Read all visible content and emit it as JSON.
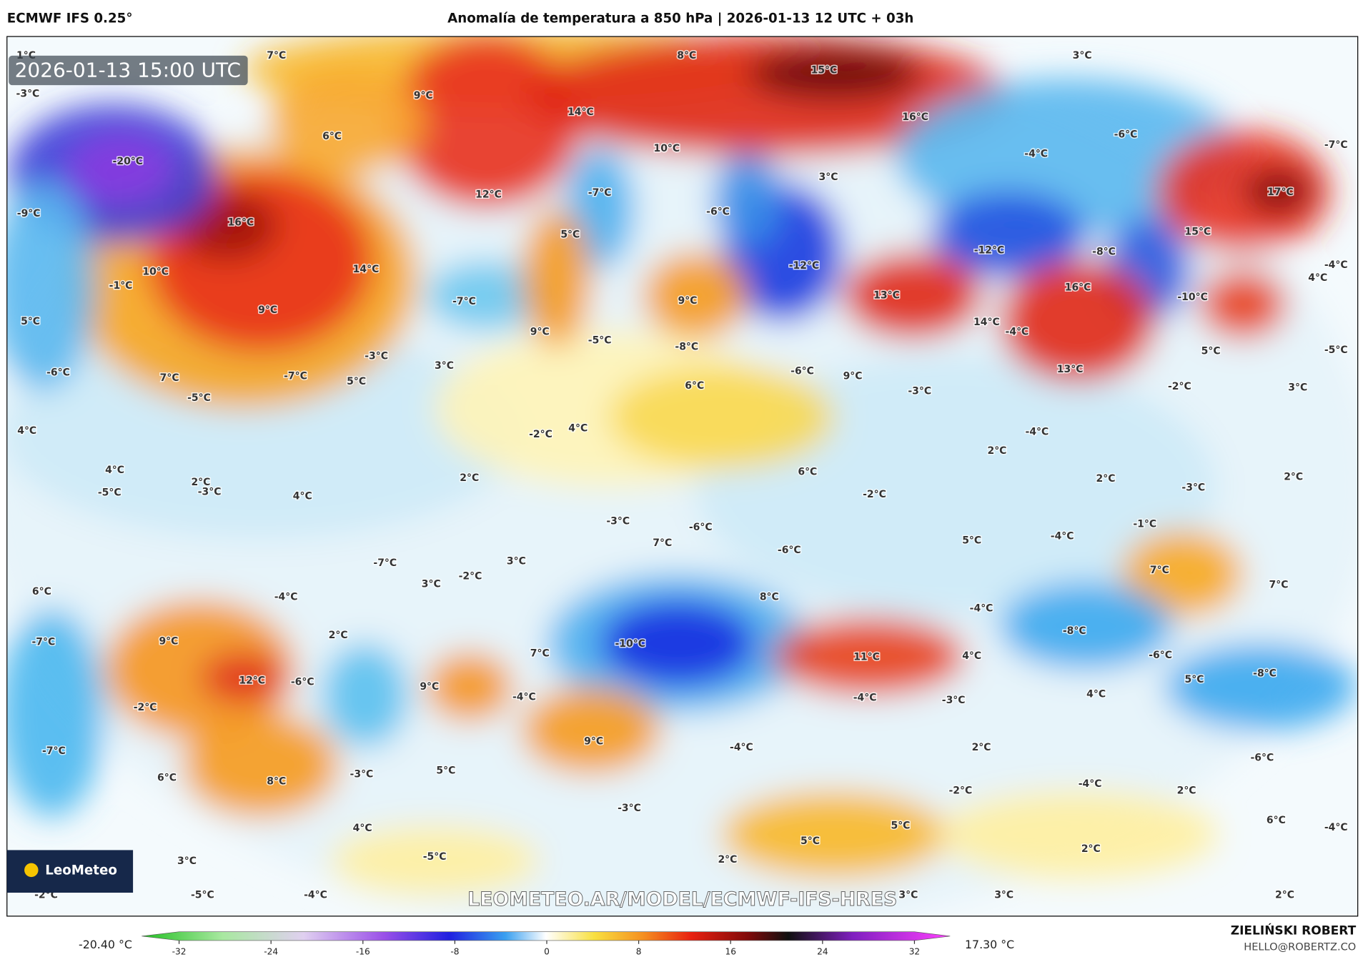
{
  "header": {
    "model": "ECMWF IFS 0.25°",
    "title": "Anomalía de temperatura a 850 hPa | 2026-01-13 12 UTC + 03h"
  },
  "map": {
    "timestamp": "2026-01-13 15:00 UTC",
    "watermark": "LEOMETEO.AR/MODEL/ECMWF-IFS-HRES",
    "logo": "LeoMeteo",
    "labels": [
      "1°C",
      "7°C",
      "8°C",
      "3°C",
      "-3°C",
      "15°C",
      "9°C",
      "14°C",
      "16°C",
      "6°C",
      "-6°C",
      "-20°C",
      "10°C",
      "-4°C",
      "-7°C",
      "3°C",
      "12°C",
      "-7°C",
      "17°C",
      "-9°C",
      "16°C",
      "-6°C",
      "5°C",
      "15°C",
      "-12°C",
      "-8°C",
      "14°C",
      "10°C",
      "-12°C",
      "-4°C",
      "-1°C",
      "16°C",
      "4°C",
      "13°C",
      "-7°C",
      "9°C",
      "-10°C",
      "9°C",
      "5°C",
      "14°C",
      "-4°C",
      "9°C",
      "-5°C",
      "-8°C",
      "5°C",
      "-5°C",
      "-3°C",
      "3°C",
      "-6°C",
      "-7°C",
      "-6°C",
      "7°C",
      "5°C",
      "13°C",
      "9°C",
      "6°C",
      "-2°C",
      "3°C",
      "-3°C",
      "-5°C",
      "4°C",
      "-2°C",
      "4°C",
      "-4°C",
      "2°C",
      "4°C",
      "6°C",
      "2°C",
      "2°C",
      "2°C",
      "2°C",
      "-3°C",
      "-5°C",
      "-3°C",
      "4°C",
      "-2°C",
      "-3°C",
      "-6°C",
      "-1°C",
      "-4°C",
      "5°C",
      "7°C",
      "-6°C",
      "3°C",
      "-7°C",
      "7°C",
      "-2°C",
      "3°C",
      "7°C",
      "6°C",
      "-4°C",
      "8°C",
      "-4°C",
      "-7°C",
      "9°C",
      "-8°C",
      "2°C",
      "-10°C",
      "7°C",
      "11°C",
      "4°C",
      "-6°C",
      "-8°C",
      "12°C",
      "5°C",
      "-6°C",
      "9°C",
      "-4°C",
      "-4°C",
      "-3°C",
      "4°C",
      "-2°C",
      "9°C",
      "-4°C",
      "2°C",
      "-7°C",
      "-6°C",
      "5°C",
      "-3°C",
      "6°C",
      "8°C",
      "-2°C",
      "-4°C",
      "2°C",
      "-3°C",
      "6°C",
      "5°C",
      "-4°C",
      "4°C",
      "5°C",
      "2°C",
      "-5°C",
      "3°C",
      "2°C",
      "-2°C",
      "-5°C",
      "-4°C",
      "3°C",
      "3°C",
      "2°C"
    ]
  },
  "colorbar": {
    "range": [
      -32,
      32
    ],
    "ticks": [
      -32,
      -24,
      -16,
      -8,
      0,
      8,
      16,
      24,
      32
    ],
    "min_label": "-20.40 °C",
    "max_label": "17.30 °C"
  },
  "footer": {
    "author": "ZIELIŃSKI ROBERT",
    "email": "HELLO@ROBERTZ.CO"
  }
}
